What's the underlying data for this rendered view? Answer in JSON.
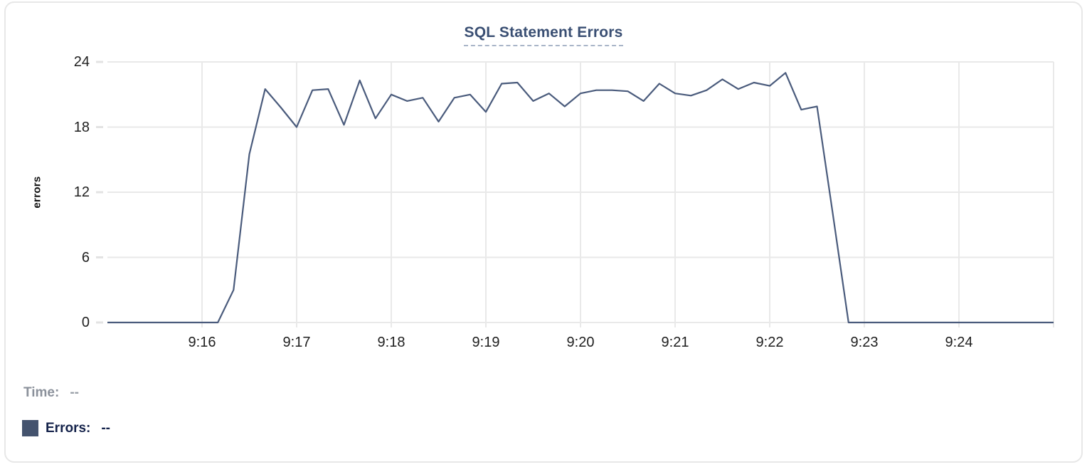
{
  "chart_data": {
    "type": "line",
    "title": "SQL Statement Errors",
    "xlabel": "",
    "ylabel": "errors",
    "ylim": [
      0,
      24
    ],
    "y_ticks": [
      0,
      6,
      12,
      18,
      24
    ],
    "x_axis_start": "9:15:00",
    "x_axis_end": "9:25:00",
    "point_interval_seconds": 10,
    "x_tick_labels": [
      "9:16",
      "9:17",
      "9:18",
      "9:19",
      "9:20",
      "9:21",
      "9:22",
      "9:23",
      "9:24"
    ],
    "grid": true,
    "legend_position": "bottom-left",
    "series": [
      {
        "name": "Errors",
        "color": "#4a5b7c",
        "values": [
          0,
          0,
          0,
          0,
          0,
          0,
          0,
          0,
          3,
          15.5,
          21.5,
          19.8,
          18,
          21.4,
          21.5,
          18.2,
          22.3,
          18.8,
          21,
          20.4,
          20.7,
          18.5,
          20.7,
          21,
          19.4,
          22,
          22.1,
          20.4,
          21.1,
          19.9,
          21.1,
          21.4,
          21.4,
          21.3,
          20.4,
          22,
          21.1,
          20.9,
          21.4,
          22.4,
          21.5,
          22.1,
          21.8,
          23,
          19.6,
          19.9,
          10,
          0,
          0,
          0,
          0,
          0,
          0,
          0,
          0,
          0,
          0,
          0,
          0,
          0,
          0
        ]
      }
    ]
  },
  "footer": {
    "time_label": "Time:",
    "time_value": "--",
    "errors_label": "Errors:",
    "errors_value": "--",
    "swatch_color": "#44536e"
  },
  "colors": {
    "title": "#3a4f73",
    "title_underline": "#a9b5c8",
    "grid": "#e9e9e9",
    "axis_text": "#1f1f1f",
    "line": "#4a5b7c",
    "legend_swatch": "#44536e",
    "time_label_gray": "#8b919b",
    "errors_label_navy": "#14224a",
    "card_border": "#e7e7e7"
  }
}
